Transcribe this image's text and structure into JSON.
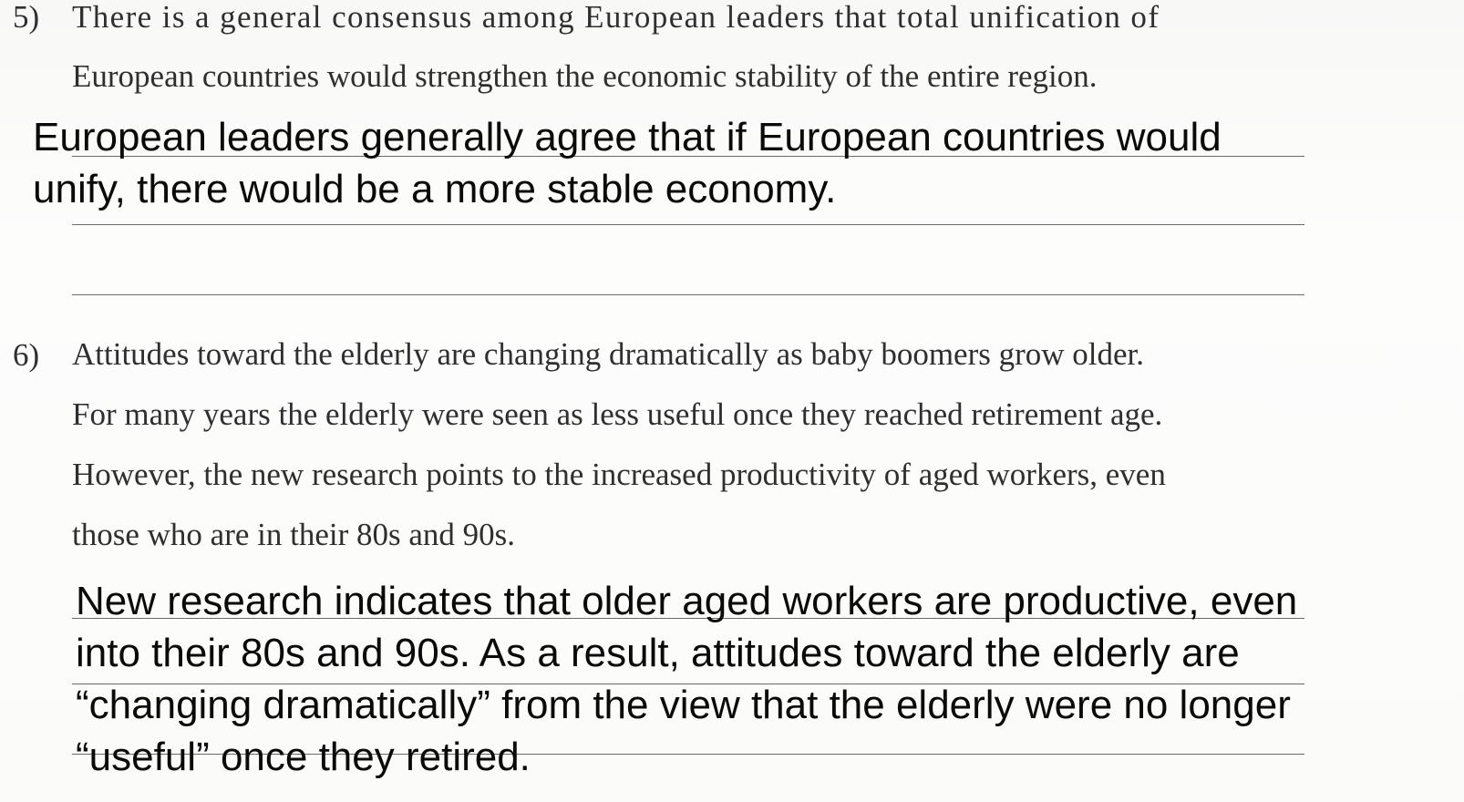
{
  "question_5": {
    "number": "5)",
    "lines": [
      "There is a general consensus among European leaders that total unification of",
      "European countries would strengthen the economic stability of the entire region."
    ],
    "answer": [
      "European leaders generally agree that if European countries would",
      "unify, there would be a more stable economy."
    ]
  },
  "question_6": {
    "number": "6)",
    "lines": [
      "Attitudes toward the elderly are changing dramatically as baby boomers grow older.",
      "For many years the elderly were seen as less useful once they reached retirement age.",
      "However, the new research points to the increased productivity of aged workers, even",
      "those who are in their 80s and 90s."
    ],
    "answer": [
      "New research indicates that older aged workers are productive, even",
      "into their 80s and 90s. As a result, attitudes toward the elderly are",
      "“changing dramatically” from the view that the elderly were no longer",
      "“useful” once they retired."
    ]
  }
}
